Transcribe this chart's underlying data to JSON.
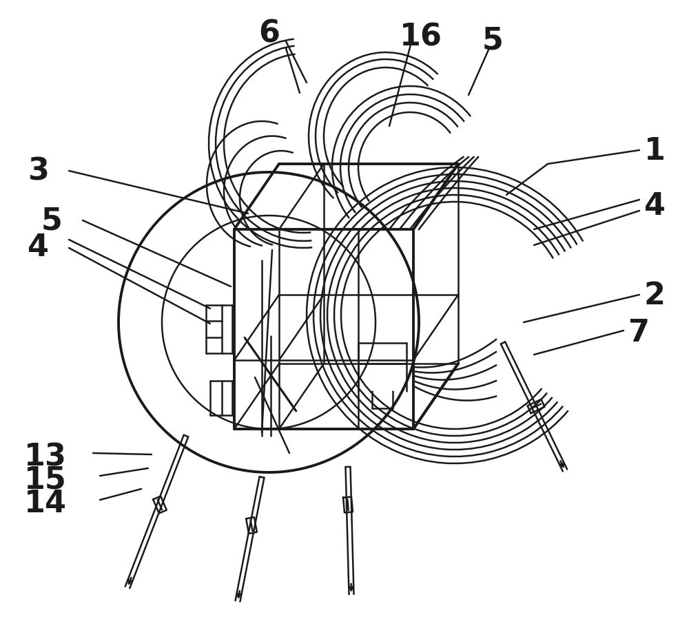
{
  "bg_color": "#ffffff",
  "lc": "#1a1a1a",
  "lw": 1.8,
  "tlw": 2.8,
  "figsize": [
    10.0,
    9.29
  ],
  "dpi": 100,
  "fs": 32
}
